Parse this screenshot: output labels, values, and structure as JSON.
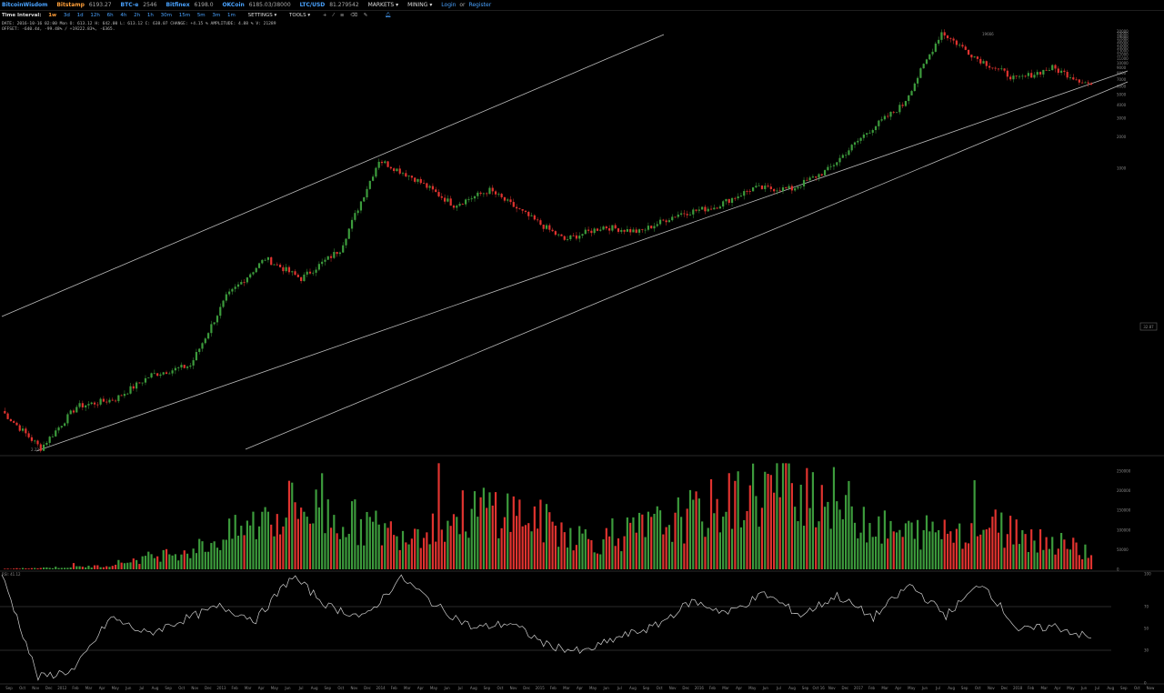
{
  "header": {
    "brand": "BitcoinWisdom",
    "tickers": [
      {
        "name": "Bitstamp",
        "price": "6193.27"
      },
      {
        "name": "BTC-e",
        "price": "2546"
      },
      {
        "name": "Bitfinex",
        "price": "6198.0"
      },
      {
        "name": "OKCoin",
        "price": "6185.03/38000"
      },
      {
        "name": "LTC/USD",
        "price": "81.279542"
      }
    ],
    "markets_label": "MARKETS",
    "mining_label": "MINING",
    "login_label": "Login",
    "or_label": "or",
    "register_label": "Register"
  },
  "toolbar": {
    "interval_label": "Time Interval:",
    "intervals": [
      "1w",
      "3d",
      "1d",
      "12h",
      "6h",
      "4h",
      "2h",
      "1h",
      "30m",
      "15m",
      "5m",
      "3m",
      "1m"
    ],
    "active_interval": "1w",
    "settings_label": "SETTINGS",
    "tools_label": "TOOLS"
  },
  "info": {
    "line1": "DATE: 2016-10-16 02:00 Mon   O: 613.12   H: 642.00   L: 613.12   C: 638.07   CHANGE: +4.15 %   AMPLITUDE: 4.88 %   V: 21289",
    "line2": "OFFSET: -640.4d, -99.48% / +19222.83%, -6365."
  },
  "chart_data": {
    "type": "candlestick",
    "title": "",
    "x_tick_labels": [
      "Sep",
      "Oct",
      "Nov",
      "Dec",
      "2012",
      "Feb",
      "Mar",
      "Apr",
      "May",
      "Jun",
      "Jul",
      "Aug",
      "Sep",
      "Oct",
      "Nov",
      "Dec",
      "2013",
      "Feb",
      "Mar",
      "Apr",
      "May",
      "Jun",
      "Jul",
      "Aug",
      "Sep",
      "Oct",
      "Nov",
      "Dec",
      "2014",
      "Feb",
      "Mar",
      "Apr",
      "May",
      "Jun",
      "Jul",
      "Aug",
      "Sep",
      "Oct",
      "Nov",
      "Dec",
      "2015",
      "Feb",
      "Mar",
      "Apr",
      "May",
      "Jun",
      "Jul",
      "Aug",
      "Sep",
      "Oct",
      "Nov",
      "Dec",
      "2016",
      "Feb",
      "Mar",
      "Apr",
      "May",
      "Jun",
      "Jul",
      "Aug",
      "Sep",
      "Oct 16",
      "Nov",
      "Dec",
      "2017",
      "Feb",
      "Mar",
      "Apr",
      "May",
      "Jun",
      "Jul",
      "Aug",
      "Sep",
      "Oct",
      "Nov",
      "Dec",
      "2018",
      "Feb",
      "Mar",
      "Apr",
      "May",
      "Jun",
      "Jul",
      "Aug",
      "Sep",
      "Oct",
      "Now"
    ],
    "price_axis": {
      "scale": "log",
      "ticks": [
        "20000",
        "19000",
        "18000",
        "17000",
        "16000",
        "15000",
        "14000",
        "13000",
        "12000",
        "11000",
        "10000",
        "9000",
        "8000",
        "7000",
        "6000",
        "5000",
        "4000",
        "3000",
        "2000",
        "1000"
      ]
    },
    "price_series": [
      {
        "label": "2011",
        "value": 5
      },
      {
        "label": "Nov 2011",
        "value": 2.22
      },
      {
        "label": "2012",
        "value": 5.5
      },
      {
        "label": "Jun 2012",
        "value": 6.5
      },
      {
        "label": "Aug 2012",
        "value": 11
      },
      {
        "label": "2013",
        "value": 13.5
      },
      {
        "label": "Mar 2013",
        "value": 60
      },
      {
        "label": "Apr 2013",
        "value": 140
      },
      {
        "label": "Jul 2013",
        "value": 90
      },
      {
        "label": "Oct 2013",
        "value": 170
      },
      {
        "label": "Nov 2013",
        "value": 1200
      },
      {
        "label": "2014",
        "value": 800
      },
      {
        "label": "Apr 2014",
        "value": 450
      },
      {
        "label": "Jun 2014",
        "value": 620
      },
      {
        "label": "Oct 2014",
        "value": 350
      },
      {
        "label": "2015",
        "value": 210
      },
      {
        "label": "Jul 2015",
        "value": 280
      },
      {
        "label": "Oct 2015",
        "value": 250
      },
      {
        "label": "Nov 2015",
        "value": 370
      },
      {
        "label": "2016",
        "value": 430
      },
      {
        "label": "Jun 2016",
        "value": 650
      },
      {
        "label": "Oct 16",
        "value": 638
      },
      {
        "label": "2017",
        "value": 970
      },
      {
        "label": "May 2017",
        "value": 2200
      },
      {
        "label": "Sep 2017",
        "value": 4000
      },
      {
        "label": "Dec 2017",
        "value": 19666
      },
      {
        "label": "2018",
        "value": 11000
      },
      {
        "label": "Apr 2018",
        "value": 7000
      },
      {
        "label": "May 2018",
        "value": 9000
      },
      {
        "label": "Now",
        "value": 6193
      }
    ],
    "annotations": {
      "high": "19666",
      "low": "2.22",
      "offset_badge": "32.87"
    },
    "volume_axis": {
      "ticks": [
        "250000",
        "200000",
        "150000",
        "100000",
        "50000",
        "0"
      ]
    },
    "volume_series": [
      {
        "label": "2011",
        "value": 1000
      },
      {
        "label": "2013",
        "value": 8000
      },
      {
        "label": "Apr 2013",
        "value": 55000
      },
      {
        "label": "Nov 2013",
        "value": 160000
      },
      {
        "label": "2014",
        "value": 90000
      },
      {
        "label": "2015",
        "value": 160000
      },
      {
        "label": "2016",
        "value": 70000
      },
      {
        "label": "Oct 16",
        "value": 140000
      },
      {
        "label": "2017",
        "value": 230000
      },
      {
        "label": "Jun 2017",
        "value": 90000
      },
      {
        "label": "2018",
        "value": 110000
      },
      {
        "label": "Now",
        "value": 45000
      }
    ],
    "rsi": {
      "label": "RSI: 41.12",
      "axis_ticks": [
        "100",
        "70",
        "50",
        "30",
        "0"
      ],
      "series": [
        {
          "label": "Sep 2011",
          "value": 100
        },
        {
          "label": "Oct 2011",
          "value": 5
        },
        {
          "label": "Nov 2011",
          "value": 12
        },
        {
          "label": "2012",
          "value": 60
        },
        {
          "label": "Mar 2012",
          "value": 45
        },
        {
          "label": "Jul 2012",
          "value": 58
        },
        {
          "label": "Aug 2012",
          "value": 70
        },
        {
          "label": "Dec 2012",
          "value": 58
        },
        {
          "label": "Apr 2013",
          "value": 98
        },
        {
          "label": "May 2013",
          "value": 70
        },
        {
          "label": "Aug 2013",
          "value": 60
        },
        {
          "label": "Nov 2013",
          "value": 97
        },
        {
          "label": "2014",
          "value": 70
        },
        {
          "label": "Apr 2014",
          "value": 50
        },
        {
          "label": "Jul 2014",
          "value": 55
        },
        {
          "label": "Oct 2014",
          "value": 35
        },
        {
          "label": "2015",
          "value": 28
        },
        {
          "label": "Apr 2015",
          "value": 42
        },
        {
          "label": "Jul 2015",
          "value": 52
        },
        {
          "label": "Nov 2015",
          "value": 75
        },
        {
          "label": "2016",
          "value": 64
        },
        {
          "label": "Jun 2016",
          "value": 82
        },
        {
          "label": "Oct 16",
          "value": 62
        },
        {
          "label": "Jan 2017",
          "value": 80
        },
        {
          "label": "Mar 2017",
          "value": 60
        },
        {
          "label": "May 2017",
          "value": 90
        },
        {
          "label": "Jul 2017",
          "value": 62
        },
        {
          "label": "Dec 2017",
          "value": 92
        },
        {
          "label": "Feb 2018",
          "value": 48
        },
        {
          "label": "May 2018",
          "value": 52
        },
        {
          "label": "Now",
          "value": 41
        }
      ]
    }
  }
}
